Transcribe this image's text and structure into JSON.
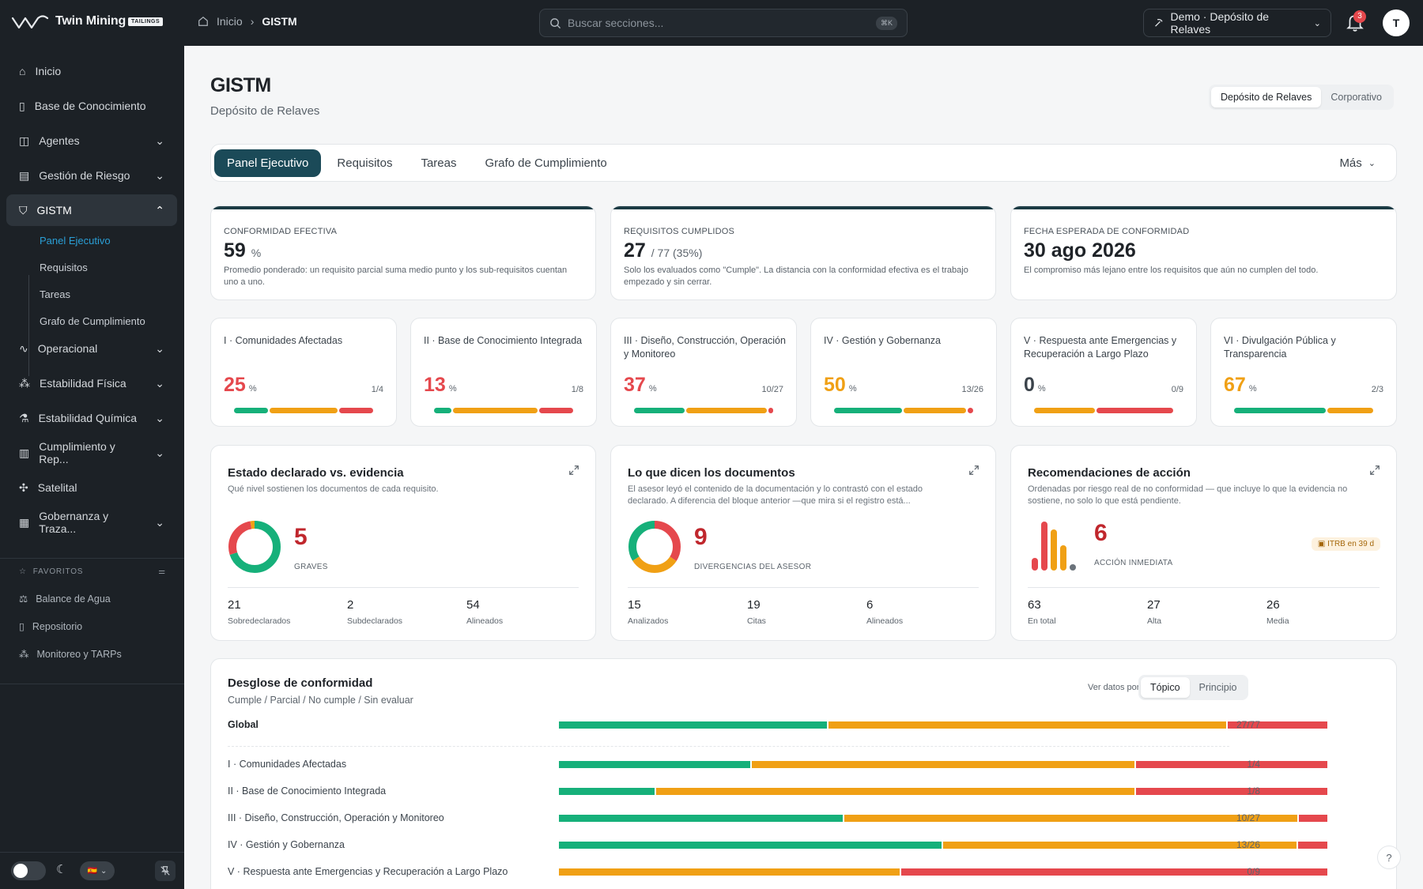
{
  "app": {
    "name": "Twin Mining",
    "badge": "TAILINGS"
  },
  "breadcrumb": {
    "home": "Inicio",
    "current": "GISTM"
  },
  "search": {
    "placeholder": "Buscar secciones...",
    "shortcut": "⌘K"
  },
  "site_selector": "Demo · Depósito de Relaves",
  "notifications": {
    "count": "3"
  },
  "user": {
    "initial": "T"
  },
  "sidebar": {
    "items": [
      {
        "label": "Inicio",
        "icon": "home-icon"
      },
      {
        "label": "Base de Conocimiento",
        "icon": "book-icon"
      },
      {
        "label": "Agentes",
        "icon": "bot-icon"
      },
      {
        "label": "Gestión de Riesgo",
        "icon": "risk-icon"
      },
      {
        "label": "GISTM",
        "icon": "shield-icon"
      },
      {
        "label": "Operacional",
        "icon": "activity-icon"
      },
      {
        "label": "Estabilidad Física",
        "icon": "structure-icon"
      },
      {
        "label": "Estabilidad Química",
        "icon": "flask-icon"
      },
      {
        "label": "Cumplimiento y Rep...",
        "icon": "chart-icon"
      },
      {
        "label": "Satelital",
        "icon": "satellite-icon"
      },
      {
        "label": "Gobernanza y Traza...",
        "icon": "governance-icon"
      }
    ],
    "gistm_sub": [
      "Panel Ejecutivo",
      "Requisitos",
      "Tareas",
      "Grafo de Cumplimiento"
    ],
    "favorites_title": "FAVORITOS",
    "favorites": [
      "Balance de Agua",
      "Repositorio",
      "Monitoreo y TARPs"
    ],
    "lang_flag": "🇪🇸"
  },
  "page": {
    "title": "GISTM",
    "subtitle": "Depósito de Relaves",
    "scope_options": [
      "Depósito de Relaves",
      "Corporativo"
    ]
  },
  "tabs": [
    "Panel Ejecutivo",
    "Requisitos",
    "Tareas",
    "Grafo de Cumplimiento"
  ],
  "tabs_more": "Más",
  "kpis": [
    {
      "label": "CONFORMIDAD EFECTIVA",
      "value": "59",
      "unit": "%",
      "desc": "Promedio ponderado: un requisito parcial suma medio punto y los sub-requisitos cuentan uno a uno."
    },
    {
      "label": "REQUISITOS CUMPLIDOS",
      "value": "27",
      "unit": "/ 77  (35%)",
      "desc": "Solo los evaluados como \"Cumple\". La distancia con la conformidad efectiva es el trabajo empezado y sin cerrar."
    },
    {
      "label": "FECHA ESPERADA DE CONFORMIDAD",
      "value": "30 ago 2026",
      "unit": "",
      "desc": "El compromiso más lejano entre los requisitos que aún no cumplen del todo."
    }
  ],
  "topics": [
    {
      "name": "I · Comunidades Afectadas",
      "pct": "25",
      "unit": "%",
      "ratio": "1/4",
      "color": "#e5484d",
      "segments": [
        {
          "c": "g",
          "w": 1
        },
        {
          "c": "o",
          "w": 2
        },
        {
          "c": "r",
          "w": 1
        }
      ]
    },
    {
      "name": "II · Base de Conocimiento Integrada",
      "pct": "13",
      "unit": "%",
      "ratio": "1/8",
      "color": "#e5484d",
      "segments": [
        {
          "c": "g",
          "w": 1
        },
        {
          "c": "o",
          "w": 5
        },
        {
          "c": "r",
          "w": 2
        }
      ]
    },
    {
      "name": "III · Diseño, Construcción, Operación y Monitoreo",
      "pct": "37",
      "unit": "%",
      "ratio": "10/27",
      "color": "#e5484d",
      "segments": [
        {
          "c": "g",
          "w": 10
        },
        {
          "c": "o",
          "w": 16
        },
        {
          "c": "r",
          "w": 1
        }
      ]
    },
    {
      "name": "IV · Gestión y Gobernanza",
      "pct": "50",
      "unit": "%",
      "ratio": "13/26",
      "color": "#f0a015",
      "segments": [
        {
          "c": "g",
          "w": 13
        },
        {
          "c": "o",
          "w": 12
        },
        {
          "c": "r",
          "w": 1
        }
      ]
    },
    {
      "name": "V · Respuesta ante Emergencias y Recuperación a Largo Plazo",
      "pct": "0",
      "unit": "%",
      "ratio": "0/9",
      "color": "#3b434b",
      "segments": [
        {
          "c": "o",
          "w": 4
        },
        {
          "c": "r",
          "w": 5
        }
      ]
    },
    {
      "name": "VI · Divulgación Pública y Transparencia",
      "pct": "67",
      "unit": "%",
      "ratio": "2/3",
      "color": "#f0a015",
      "segments": [
        {
          "c": "g",
          "w": 2
        },
        {
          "c": "o",
          "w": 1
        }
      ]
    }
  ],
  "panels": [
    {
      "title": "Estado declarado vs. evidencia",
      "sub": "Qué nivel sostienen los documentos de cada requisito.",
      "big": "5",
      "bigcap": "GRAVES",
      "stats": [
        {
          "v": "21",
          "l": "Sobredeclarados"
        },
        {
          "v": "2",
          "l": "Subdeclarados"
        },
        {
          "v": "54",
          "l": "Alineados"
        }
      ]
    },
    {
      "title": "Lo que dicen los documentos",
      "sub": "El asesor leyó el contenido de la documentación y lo contrastó con el estado declarado. A diferencia del bloque anterior —que mira si el registro está...",
      "big": "9",
      "bigcap": "DIVERGENCIAS DEL ASESOR",
      "stats": [
        {
          "v": "15",
          "l": "Analizados"
        },
        {
          "v": "19",
          "l": "Citas"
        },
        {
          "v": "6",
          "l": "Alineados"
        }
      ]
    },
    {
      "title": "Recomendaciones de acción",
      "sub": "Ordenadas por riesgo real de no conformidad — que incluye lo que la evidencia no sostiene, no solo lo que está pendiente.",
      "big": "6",
      "bigcap": "ACCIÓN INMEDIATA",
      "badge": "ITRB en 39 d",
      "stats": [
        {
          "v": "63",
          "l": "En total"
        },
        {
          "v": "27",
          "l": "Alta"
        },
        {
          "v": "26",
          "l": "Media"
        }
      ]
    }
  ],
  "breakdown": {
    "title": "Desglose de conformidad",
    "sub": "Cumple / Parcial / No cumple / Sin evaluar",
    "view_by": "Ver datos por:",
    "view_options": [
      "Tópico",
      "Principio"
    ],
    "global": {
      "label": "Global",
      "ratio": "27/77",
      "segments": [
        {
          "c": "g",
          "w": 27
        },
        {
          "c": "o",
          "w": 40
        },
        {
          "c": "r",
          "w": 10
        }
      ]
    },
    "rows": [
      {
        "label": "I · Comunidades Afectadas",
        "ratio": "1/4",
        "segments": [
          {
            "c": "g",
            "w": 1
          },
          {
            "c": "o",
            "w": 2
          },
          {
            "c": "r",
            "w": 1
          }
        ]
      },
      {
        "label": "II · Base de Conocimiento Integrada",
        "ratio": "1/8",
        "segments": [
          {
            "c": "g",
            "w": 1
          },
          {
            "c": "o",
            "w": 5
          },
          {
            "c": "r",
            "w": 2
          }
        ]
      },
      {
        "label": "III · Diseño, Construcción, Operación y Monitoreo",
        "ratio": "10/27",
        "segments": [
          {
            "c": "g",
            "w": 10
          },
          {
            "c": "o",
            "w": 16
          },
          {
            "c": "r",
            "w": 1
          }
        ]
      },
      {
        "label": "IV · Gestión y Gobernanza",
        "ratio": "13/26",
        "segments": [
          {
            "c": "g",
            "w": 13
          },
          {
            "c": "o",
            "w": 12
          },
          {
            "c": "r",
            "w": 1
          }
        ]
      },
      {
        "label": "V · Respuesta ante Emergencias y Recuperación a Largo Plazo",
        "ratio": "0/9",
        "segments": [
          {
            "c": "o",
            "w": 4
          },
          {
            "c": "r",
            "w": 5
          }
        ]
      }
    ]
  },
  "colors": {
    "accent": "#1b4a58",
    "green": "#16b07a",
    "orange": "#f0a015",
    "red": "#e5484d"
  }
}
